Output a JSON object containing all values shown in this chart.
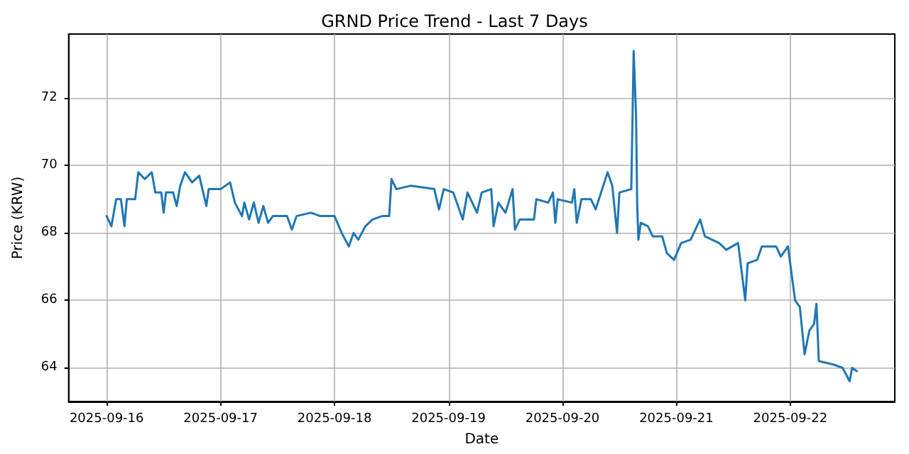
{
  "chart_data": {
    "type": "line",
    "title": "GRND Price Trend - Last 7 Days",
    "xlabel": "Date",
    "ylabel": "Price (KRW)",
    "x": [
      "2025-09-16T00:00",
      "2025-09-16T01:00",
      "2025-09-16T02:00",
      "2025-09-16T03:00",
      "2025-09-16T03:45",
      "2025-09-16T04:15",
      "2025-09-16T06:00",
      "2025-09-16T06:40",
      "2025-09-16T08:00",
      "2025-09-16T09:30",
      "2025-09-16T10:15",
      "2025-09-16T11:30",
      "2025-09-16T12:00",
      "2025-09-16T12:30",
      "2025-09-16T14:00",
      "2025-09-16T14:45",
      "2025-09-16T15:30",
      "2025-09-16T16:30",
      "2025-09-16T18:00",
      "2025-09-16T19:30",
      "2025-09-16T21:00",
      "2025-09-16T21:30",
      "2025-09-17T00:00",
      "2025-09-17T02:00",
      "2025-09-17T03:00",
      "2025-09-17T04:30",
      "2025-09-17T05:00",
      "2025-09-17T06:00",
      "2025-09-17T07:00",
      "2025-09-17T08:00",
      "2025-09-17T09:00",
      "2025-09-17T10:00",
      "2025-09-17T11:00",
      "2025-09-17T14:00",
      "2025-09-17T15:00",
      "2025-09-17T16:00",
      "2025-09-17T19:00",
      "2025-09-17T21:00",
      "2025-09-18T00:00",
      "2025-09-18T01:30",
      "2025-09-18T03:00",
      "2025-09-18T04:00",
      "2025-09-18T05:00",
      "2025-09-18T06:30",
      "2025-09-18T08:00",
      "2025-09-18T10:00",
      "2025-09-18T11:30",
      "2025-09-18T12:00",
      "2025-09-18T13:00",
      "2025-09-18T16:00",
      "2025-09-18T21:00",
      "2025-09-18T22:00",
      "2025-09-18T23:00",
      "2025-09-19T01:00",
      "2025-09-19T03:00",
      "2025-09-19T04:00",
      "2025-09-19T06:00",
      "2025-09-19T07:00",
      "2025-09-19T09:00",
      "2025-09-19T09:30",
      "2025-09-19T10:30",
      "2025-09-19T12:00",
      "2025-09-19T13:30",
      "2025-09-19T14:00",
      "2025-09-19T15:00",
      "2025-09-19T18:00",
      "2025-09-19T18:30",
      "2025-09-19T21:00",
      "2025-09-19T22:00",
      "2025-09-19T22:30",
      "2025-09-19T23:00",
      "2025-09-20T02:00",
      "2025-09-20T02:30",
      "2025-09-20T03:00",
      "2025-09-20T04:00",
      "2025-09-20T06:00",
      "2025-09-20T07:00",
      "2025-09-20T09:30",
      "2025-09-20T10:30",
      "2025-09-20T11:30",
      "2025-09-20T12:00",
      "2025-09-20T14:30",
      "2025-09-20T15:00",
      "2025-09-20T15:30",
      "2025-09-20T15:45",
      "2025-09-20T16:00",
      "2025-09-20T16:30",
      "2025-09-20T18:00",
      "2025-09-20T19:00",
      "2025-09-20T21:00",
      "2025-09-20T22:00",
      "2025-09-20T23:30",
      "2025-09-21T01:00",
      "2025-09-21T03:00",
      "2025-09-21T05:00",
      "2025-09-21T06:00",
      "2025-09-21T09:00",
      "2025-09-21T10:30",
      "2025-09-21T13:00",
      "2025-09-21T14:30",
      "2025-09-21T15:00",
      "2025-09-21T17:00",
      "2025-09-21T18:00",
      "2025-09-21T21:00",
      "2025-09-21T22:00",
      "2025-09-21T23:30",
      "2025-09-22T01:00",
      "2025-09-22T02:00",
      "2025-09-22T03:00",
      "2025-09-22T04:00",
      "2025-09-22T05:00",
      "2025-09-22T05:30",
      "2025-09-22T06:00",
      "2025-09-22T09:00",
      "2025-09-22T11:00",
      "2025-09-22T12:30",
      "2025-09-22T13:00",
      "2025-09-22T14:00"
    ],
    "series": [
      {
        "color": "#1f77b4",
        "values": [
          68.5,
          68.2,
          69.0,
          69.0,
          68.2,
          69.0,
          69.0,
          69.8,
          69.6,
          69.8,
          69.2,
          69.2,
          68.6,
          69.2,
          69.2,
          68.8,
          69.4,
          69.8,
          69.5,
          69.7,
          68.8,
          69.3,
          69.3,
          69.5,
          68.9,
          68.5,
          68.9,
          68.4,
          68.9,
          68.3,
          68.8,
          68.3,
          68.5,
          68.5,
          68.1,
          68.5,
          68.6,
          68.5,
          68.5,
          68.0,
          67.6,
          68.0,
          67.8,
          68.2,
          68.4,
          68.5,
          68.5,
          69.6,
          69.3,
          69.4,
          69.3,
          68.7,
          69.3,
          69.2,
          68.4,
          69.2,
          68.6,
          69.2,
          69.3,
          68.2,
          68.9,
          68.6,
          69.3,
          68.1,
          68.4,
          68.4,
          69.0,
          68.9,
          69.2,
          68.3,
          69.0,
          68.9,
          69.3,
          68.3,
          69.0,
          69.0,
          68.7,
          69.8,
          69.4,
          68.0,
          69.2,
          69.3,
          73.4,
          71.5,
          68.8,
          67.8,
          68.3,
          68.2,
          67.9,
          67.9,
          67.4,
          67.2,
          67.7,
          67.8,
          68.4,
          67.9,
          67.7,
          67.5,
          67.7,
          66.0,
          67.1,
          67.2,
          67.6,
          67.6,
          67.3,
          67.6,
          66.0,
          65.8,
          64.4,
          65.1,
          65.3,
          65.9,
          64.2,
          64.1,
          64.0,
          63.6,
          64.0,
          63.9
        ]
      }
    ],
    "xlim": [
      "2025-09-15T16:00",
      "2025-09-22T22:00"
    ],
    "xticks": [
      "2025-09-16",
      "2025-09-17",
      "2025-09-18",
      "2025-09-19",
      "2025-09-20",
      "2025-09-21",
      "2025-09-22"
    ],
    "ylim": [
      63.0,
      73.9
    ],
    "yticks": [
      64,
      66,
      68,
      70,
      72
    ],
    "grid": true,
    "marker": "none",
    "line_style": "solid"
  }
}
